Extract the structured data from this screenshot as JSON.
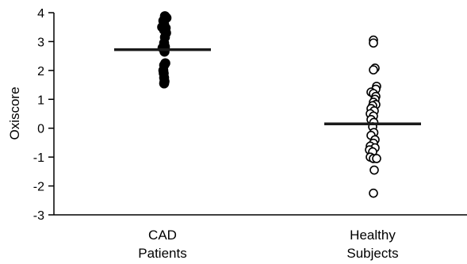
{
  "chart_data": {
    "type": "scatter",
    "title": "",
    "xlabel": "",
    "ylabel": "Oxiscore",
    "ylim": [
      -3,
      4
    ],
    "yticks": [
      "4",
      "3",
      "2",
      "1",
      "0",
      "-1",
      "-2",
      "-3"
    ],
    "grid": false,
    "categories": [
      {
        "lines": [
          "CAD",
          "Patients"
        ]
      },
      {
        "lines": [
          "Healthy",
          "Subjects"
        ]
      }
    ],
    "series": [
      {
        "category": 0,
        "marker": "filled-circle",
        "mean": 2.72,
        "points": [
          {
            "dx": 0.6,
            "y": 3.88
          },
          {
            "dx": 1.0,
            "y": 3.82
          },
          {
            "dx": 0.2,
            "y": 3.72
          },
          {
            "dx": 0.4,
            "y": 3.6
          },
          {
            "dx": -0.1,
            "y": 3.5
          },
          {
            "dx": 0.8,
            "y": 3.47
          },
          {
            "dx": 0.4,
            "y": 3.4
          },
          {
            "dx": 0.9,
            "y": 3.3
          },
          {
            "dx": 0.6,
            "y": 3.15
          },
          {
            "dx": 0.4,
            "y": 2.95
          },
          {
            "dx": 0.6,
            "y": 2.82
          },
          {
            "dx": 0.0,
            "y": 2.78
          },
          {
            "dx": 0.5,
            "y": 2.65
          },
          {
            "dx": 0.7,
            "y": 2.25
          },
          {
            "dx": 0.4,
            "y": 2.18
          },
          {
            "dx": 0.2,
            "y": 2.0
          },
          {
            "dx": 0.3,
            "y": 1.9
          },
          {
            "dx": 0.4,
            "y": 1.75
          },
          {
            "dx": 0.5,
            "y": 1.62
          },
          {
            "dx": 0.4,
            "y": 1.55
          }
        ]
      },
      {
        "category": 1,
        "marker": "open-circle",
        "mean": 0.15,
        "points": [
          {
            "dx": 0.2,
            "y": 3.05
          },
          {
            "dx": 0.2,
            "y": 2.95
          },
          {
            "dx": 0.6,
            "y": 2.08
          },
          {
            "dx": 0.2,
            "y": 2.02
          },
          {
            "dx": 1.0,
            "y": 1.45
          },
          {
            "dx": 0.8,
            "y": 1.35
          },
          {
            "dx": -0.4,
            "y": 1.25
          },
          {
            "dx": 0.2,
            "y": 1.2
          },
          {
            "dx": 0.8,
            "y": 1.1
          },
          {
            "dx": 0.6,
            "y": 1.0
          },
          {
            "dx": 0.2,
            "y": 0.9
          },
          {
            "dx": 0.8,
            "y": 0.82
          },
          {
            "dx": 0.0,
            "y": 0.78
          },
          {
            "dx": -0.4,
            "y": 0.68
          },
          {
            "dx": 0.4,
            "y": 0.6
          },
          {
            "dx": -0.6,
            "y": 0.5
          },
          {
            "dx": 0.2,
            "y": 0.42
          },
          {
            "dx": -0.4,
            "y": 0.3
          },
          {
            "dx": 0.3,
            "y": 0.2
          },
          {
            "dx": 0.0,
            "y": 0.05
          },
          {
            "dx": 0.3,
            "y": -0.15
          },
          {
            "dx": -0.4,
            "y": -0.25
          },
          {
            "dx": 0.6,
            "y": -0.4
          },
          {
            "dx": 0.2,
            "y": -0.52
          },
          {
            "dx": -0.6,
            "y": -0.62
          },
          {
            "dx": 0.6,
            "y": -0.68
          },
          {
            "dx": -0.8,
            "y": -0.75
          },
          {
            "dx": 0.0,
            "y": -0.82
          },
          {
            "dx": -0.6,
            "y": -1.0
          },
          {
            "dx": 0.2,
            "y": -1.05
          },
          {
            "dx": 1.0,
            "y": -1.05
          },
          {
            "dx": 0.4,
            "y": -1.45
          },
          {
            "dx": 0.2,
            "y": -2.25
          }
        ]
      }
    ]
  }
}
